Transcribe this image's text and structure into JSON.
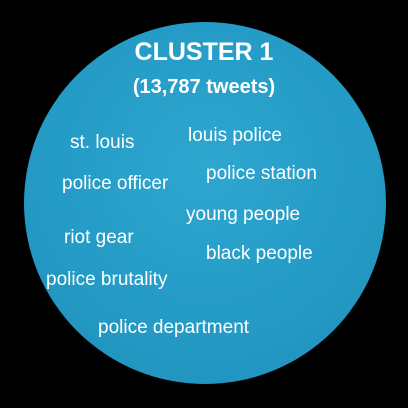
{
  "cluster": {
    "title": "CLUSTER 1",
    "subtitle": "(13,787 tweets)",
    "terms": [
      "st. louis",
      "louis police",
      "police station",
      "police officer",
      "young people",
      "riot gear",
      "black people",
      "police brutality",
      "police department"
    ]
  },
  "colors": {
    "background": "#000000",
    "circle": "#249bc6",
    "text": "#ffffff"
  }
}
